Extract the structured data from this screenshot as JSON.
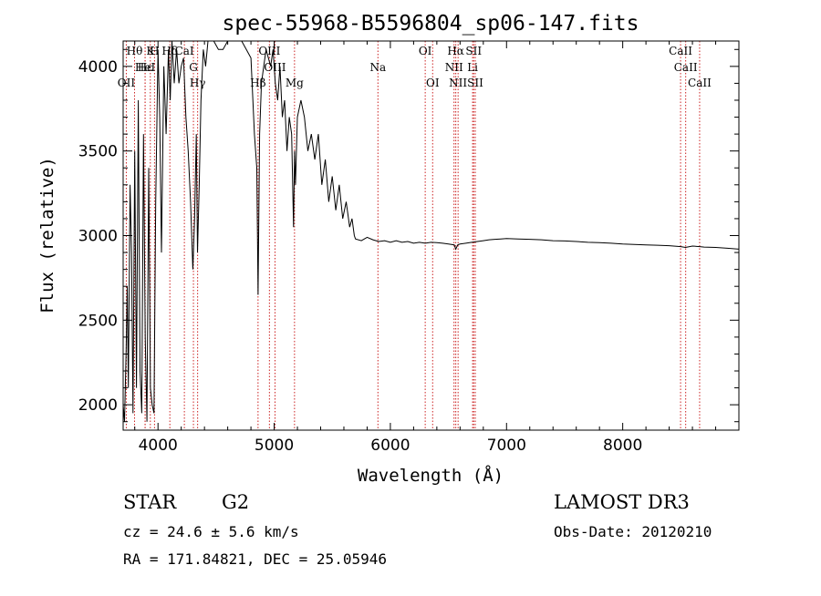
{
  "chart_data": {
    "type": "line",
    "title": "spec-55968-B5596804_sp06-147.fits",
    "xlabel": "Wavelength (Å)",
    "ylabel": "Flux (relative)",
    "xlim": [
      3700,
      9000
    ],
    "ylim": [
      1850,
      4150
    ],
    "xticks": [
      4000,
      5000,
      6000,
      7000,
      8000
    ],
    "yticks": [
      2000,
      2500,
      3000,
      3500,
      4000
    ],
    "grid": false,
    "series": [
      {
        "name": "flux",
        "x": [
          3700,
          3712,
          3725,
          3735,
          3745,
          3760,
          3772,
          3785,
          3800,
          3815,
          3830,
          3845,
          3860,
          3875,
          3890,
          3905,
          3920,
          3935,
          3950,
          3965,
          3980,
          4000,
          4015,
          4030,
          4050,
          4070,
          4090,
          4105,
          4120,
          4140,
          4160,
          4180,
          4200,
          4220,
          4240,
          4260,
          4280,
          4300,
          4315,
          4330,
          4340,
          4355,
          4370,
          4390,
          4410,
          4430,
          4450,
          4480,
          4520,
          4560,
          4600,
          4640,
          4680,
          4720,
          4760,
          4800,
          4830,
          4850,
          4861,
          4875,
          4890,
          4910,
          4930,
          4950,
          4970,
          4990,
          5010,
          5030,
          5050,
          5070,
          5090,
          5110,
          5130,
          5150,
          5167,
          5175,
          5183,
          5200,
          5230,
          5260,
          5290,
          5320,
          5350,
          5380,
          5410,
          5440,
          5470,
          5500,
          5530,
          5560,
          5590,
          5620,
          5650,
          5670,
          5690,
          5700,
          5750,
          5800,
          5850,
          5900,
          5950,
          6000,
          6050,
          6100,
          6150,
          6200,
          6250,
          6300,
          6350,
          6400,
          6450,
          6500,
          6550,
          6563,
          6580,
          6600,
          6650,
          6700,
          6750,
          6800,
          6850,
          6900,
          6950,
          7000,
          7100,
          7200,
          7300,
          7400,
          7500,
          7600,
          7700,
          7800,
          7900,
          8000,
          8100,
          8200,
          8300,
          8400,
          8500,
          8540,
          8600,
          8662,
          8700,
          8800,
          8900,
          9000
        ],
        "y": [
          2000,
          1900,
          2300,
          2700,
          2100,
          3300,
          2900,
          1950,
          3500,
          2100,
          3800,
          2200,
          1950,
          3600,
          2400,
          1900,
          3400,
          2100,
          2000,
          1950,
          3200,
          4100,
          3700,
          2900,
          4000,
          3600,
          4100,
          3800,
          4150,
          3900,
          4100,
          3900,
          4000,
          4050,
          3700,
          3500,
          3200,
          2800,
          3100,
          3600,
          2900,
          3300,
          3800,
          4100,
          4000,
          4150,
          4150,
          4150,
          4100,
          4100,
          4150,
          4150,
          4150,
          4150,
          4100,
          4050,
          3600,
          3400,
          2650,
          3600,
          3900,
          4000,
          4100,
          4050,
          4000,
          4100,
          3900,
          3800,
          4000,
          3700,
          3800,
          3500,
          3700,
          3600,
          3050,
          3500,
          3300,
          3700,
          3800,
          3700,
          3500,
          3600,
          3450,
          3600,
          3300,
          3450,
          3200,
          3350,
          3150,
          3300,
          3100,
          3200,
          3050,
          3100,
          3000,
          2980,
          2970,
          2990,
          2975,
          2965,
          2970,
          2960,
          2970,
          2960,
          2965,
          2955,
          2960,
          2955,
          2960,
          2958,
          2955,
          2950,
          2945,
          2920,
          2945,
          2950,
          2955,
          2960,
          2965,
          2970,
          2975,
          2978,
          2980,
          2982,
          2980,
          2978,
          2975,
          2970,
          2968,
          2965,
          2960,
          2958,
          2955,
          2950,
          2948,
          2945,
          2943,
          2940,
          2935,
          2930,
          2938,
          2935,
          2932,
          2930,
          2925,
          2920
        ]
      }
    ],
    "spectral_lines": [
      {
        "label": "Hθ",
        "x": 3798,
        "row": 1
      },
      {
        "label": "K",
        "x": 3934,
        "row": 1
      },
      {
        "label": "H",
        "x": 3970,
        "row": 1
      },
      {
        "label": "Hδ",
        "x": 4102,
        "row": 1
      },
      {
        "label": "CaI",
        "x": 4227,
        "row": 1
      },
      {
        "label": "OII",
        "x": 3727,
        "row": 3
      },
      {
        "label": "Hε",
        "x": 3889,
        "row": 2
      },
      {
        "label": "HeI",
        "x": 3889,
        "row": 2
      },
      {
        "label": "Hγ",
        "x": 4341,
        "row": 3
      },
      {
        "label": "G",
        "x": 4305,
        "row": 2
      },
      {
        "label": "Hβ",
        "x": 4861,
        "row": 3
      },
      {
        "label": "OIII",
        "x": 4959,
        "row": 1
      },
      {
        "label": "OIII",
        "x": 5007,
        "row": 2
      },
      {
        "label": "Mg",
        "x": 5175,
        "row": 3
      },
      {
        "label": "Na",
        "x": 5893,
        "row": 2
      },
      {
        "label": "OI",
        "x": 6300,
        "row": 1
      },
      {
        "label": "OI",
        "x": 6364,
        "row": 3
      },
      {
        "label": "Hα",
        "x": 6563,
        "row": 1
      },
      {
        "label": "NII",
        "x": 6548,
        "row": 2
      },
      {
        "label": "NII",
        "x": 6583,
        "row": 3
      },
      {
        "label": "SII",
        "x": 6717,
        "row": 1
      },
      {
        "label": "Li",
        "x": 6708,
        "row": 2
      },
      {
        "label": "SII",
        "x": 6731,
        "row": 3
      },
      {
        "label": "CaII",
        "x": 8498,
        "row": 1
      },
      {
        "label": "CaII",
        "x": 8542,
        "row": 2
      },
      {
        "label": "CaII",
        "x": 8662,
        "row": 3
      }
    ]
  },
  "info": {
    "object_class": "STAR",
    "subclass": "G2",
    "survey": "LAMOST DR3",
    "redshift": "cz = 24.6 ± 5.6 km/s",
    "obs_date": "Obs-Date: 20120210",
    "coords": "RA = 171.84821, DEC =  25.05946"
  },
  "colors": {
    "spectrum": "#000000",
    "line_marker": "#cc2222",
    "axes": "#000000"
  }
}
